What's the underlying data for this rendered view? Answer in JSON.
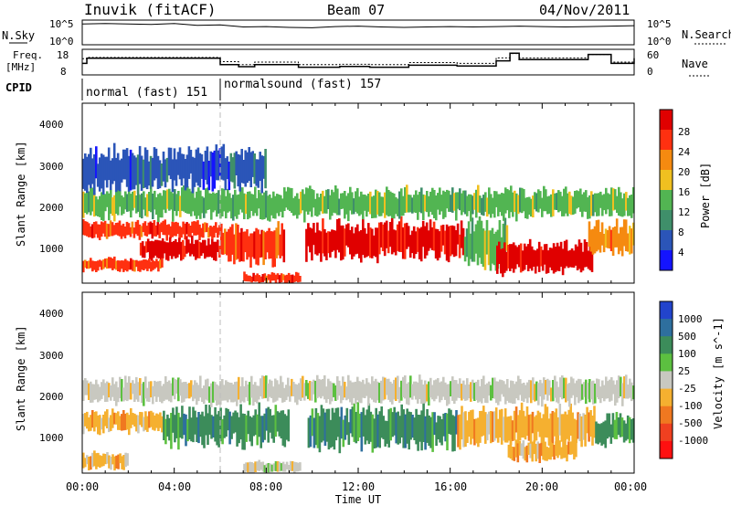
{
  "header": {
    "station": "Inuvik (fitACF)",
    "beam": "Beam 07",
    "date": "04/Nov/2011"
  },
  "panels": {
    "nsky": {
      "label": "N.Sky",
      "ticks": [
        "10^5",
        "10^0"
      ],
      "right_label": "N.Search",
      "right_ticks": [
        "10^5",
        "10^0"
      ]
    },
    "freq": {
      "label_top": "Freq.",
      "label_bottom": "[MHz]",
      "ticks": [
        "18",
        "8"
      ],
      "right_label": "Nave",
      "right_ticks": [
        "60",
        "0"
      ]
    },
    "cpid": {
      "label": "CPID",
      "segments": [
        {
          "label": "normal (fast) 151",
          "start_hour": 0,
          "end_hour": 6
        },
        {
          "label": "normalsound (fast) 157",
          "start_hour": 6,
          "end_hour": 24
        }
      ]
    },
    "power": {
      "ylabel": "Slant Range [km]",
      "yticks": [
        "1000",
        "2000",
        "3000",
        "4000"
      ],
      "colorbar_label": "Power [dB]",
      "colorbar_ticks": [
        "28",
        "24",
        "20",
        "16",
        "12",
        "8",
        "4"
      ],
      "colors": [
        "#1414ff",
        "#2b55b8",
        "#3f8f6a",
        "#52b552",
        "#f0c020",
        "#f58a10",
        "#ff3010",
        "#e00000"
      ]
    },
    "velocity": {
      "ylabel": "Slant Range [km]",
      "yticks": [
        "1000",
        "2000",
        "3000",
        "4000"
      ],
      "colorbar_label": "Velocity [m s^-1]",
      "colorbar_ticks": [
        "1000",
        "500",
        "100",
        "25",
        "-25",
        "-100",
        "-500",
        "-1000"
      ],
      "colors": [
        "#2244cc",
        "#2e6f9e",
        "#3c8c5a",
        "#5cc040",
        "#c8c8c0",
        "#f5b030",
        "#f07820",
        "#f04020",
        "#ff1010"
      ]
    }
  },
  "xaxis": {
    "label": "Time UT",
    "ticks": [
      "00:00",
      "04:00",
      "08:00",
      "12:00",
      "16:00",
      "20:00",
      "00:00"
    ]
  },
  "chart_data": [
    {
      "type": "line",
      "title": "N.Sky / N.Search",
      "x": [
        0,
        1,
        2,
        3,
        4,
        5,
        6,
        7,
        8,
        9,
        10,
        11,
        12,
        13,
        14,
        15,
        16,
        17,
        18,
        19,
        20,
        21,
        22,
        23,
        24
      ],
      "series": [
        {
          "name": "N.Sky",
          "values": [
            4.5,
            4.6,
            4.5,
            4.4,
            4.6,
            4.2,
            4.3,
            3.8,
            3.9,
            3.7,
            3.6,
            3.9,
            4.0,
            3.8,
            3.7,
            3.8,
            3.9,
            3.8,
            3.9,
            4.0,
            3.9,
            3.8,
            3.9,
            4.0,
            4.1
          ]
        },
        {
          "name": "N.Search",
          "values": [
            0,
            0,
            0,
            0,
            0,
            0,
            0,
            0,
            0,
            0,
            0,
            0,
            0,
            0,
            0,
            0,
            0,
            0,
            0,
            0,
            0,
            0,
            0,
            0,
            0
          ]
        }
      ],
      "ylim": [
        0,
        5
      ],
      "y_scale": "log"
    },
    {
      "type": "line",
      "title": "Freq. / Nave",
      "x": [
        0,
        0.2,
        6.0,
        6.8,
        7.5,
        9.4,
        11.2,
        12.5,
        14.2,
        16.3,
        18.0,
        18.6,
        19.0,
        22.0,
        23.0,
        24.0
      ],
      "series": [
        {
          "name": "Freq",
          "values": [
            12.5,
            14.5,
            12.0,
            11.2,
            12.0,
            11.0,
            11.3,
            11.0,
            11.8,
            11.5,
            13.5,
            16.5,
            14.0,
            16.0,
            12.5,
            14.5
          ]
        },
        {
          "name": "Nave",
          "values": [
            38,
            41,
            31,
            24,
            30,
            24,
            25,
            24,
            29,
            27,
            40,
            50,
            40,
            48,
            30,
            40
          ]
        }
      ],
      "ylim": [
        8,
        18
      ],
      "ylim_right": [
        0,
        60
      ]
    },
    {
      "type": "heatmap",
      "title": "Power",
      "xlabel": "Time UT",
      "ylabel": "Slant Range [km]",
      "xlim": [
        0,
        24
      ],
      "ylim": [
        200,
        4600
      ],
      "zlabel": "Power [dB]",
      "zlim": [
        0,
        30
      ],
      "regions": [
        {
          "t0": 0.0,
          "t1": 6.0,
          "r0": 1300,
          "r1": 1700,
          "value": 26
        },
        {
          "t0": 2.5,
          "t1": 6.0,
          "r0": 800,
          "r1": 1300,
          "value": 29
        },
        {
          "t0": 0.0,
          "t1": 3.5,
          "r0": 500,
          "r1": 800,
          "value": 27
        },
        {
          "t0": 6.0,
          "t1": 8.8,
          "r0": 700,
          "r1": 1600,
          "value": 26
        },
        {
          "t0": 9.7,
          "t1": 16.6,
          "r0": 800,
          "r1": 1700,
          "value": 28
        },
        {
          "t0": 7.0,
          "t1": 9.5,
          "r0": 200,
          "r1": 450,
          "value": 27
        },
        {
          "t0": 16.6,
          "t1": 18.5,
          "r0": 600,
          "r1": 1700,
          "value": 12
        },
        {
          "t0": 18.0,
          "t1": 22.2,
          "r0": 450,
          "r1": 1200,
          "value": 29
        },
        {
          "t0": 22.0,
          "t1": 24.0,
          "r0": 900,
          "r1": 1700,
          "value": 20
        },
        {
          "t0": 0.0,
          "t1": 24.0,
          "r0": 1800,
          "r1": 2500,
          "value": 14
        },
        {
          "t0": 0.0,
          "t1": 8.0,
          "r0": 2500,
          "r1": 3500,
          "value": 6
        }
      ]
    },
    {
      "type": "heatmap",
      "title": "Velocity",
      "xlabel": "Time UT",
      "ylabel": "Slant Range [km]",
      "xlim": [
        0,
        24
      ],
      "ylim": [
        200,
        4600
      ],
      "zlabel": "Velocity [m s^-1]",
      "zlim": [
        -1000,
        1000
      ],
      "regions": [
        {
          "t0": 0.0,
          "t1": 3.5,
          "r0": 1200,
          "r1": 1700,
          "value": -100
        },
        {
          "t0": 3.5,
          "t1": 9.0,
          "r0": 900,
          "r1": 1800,
          "value": 100
        },
        {
          "t0": 9.8,
          "t1": 16.3,
          "r0": 800,
          "r1": 1800,
          "value": 100
        },
        {
          "t0": 16.3,
          "t1": 22.3,
          "r0": 900,
          "r1": 1800,
          "value": -100
        },
        {
          "t0": 18.5,
          "t1": 21.5,
          "r0": 500,
          "r1": 1000,
          "value": -100
        },
        {
          "t0": 22.3,
          "t1": 24.0,
          "r0": 900,
          "r1": 1600,
          "value": 100
        },
        {
          "t0": 0.0,
          "t1": 24.0,
          "r0": 1900,
          "r1": 2500,
          "value": 0
        },
        {
          "t0": 0.0,
          "t1": 2.0,
          "r0": 300,
          "r1": 700,
          "value": -100
        },
        {
          "t0": 7.0,
          "t1": 9.5,
          "r0": 200,
          "r1": 500,
          "value": 0
        }
      ]
    }
  ]
}
